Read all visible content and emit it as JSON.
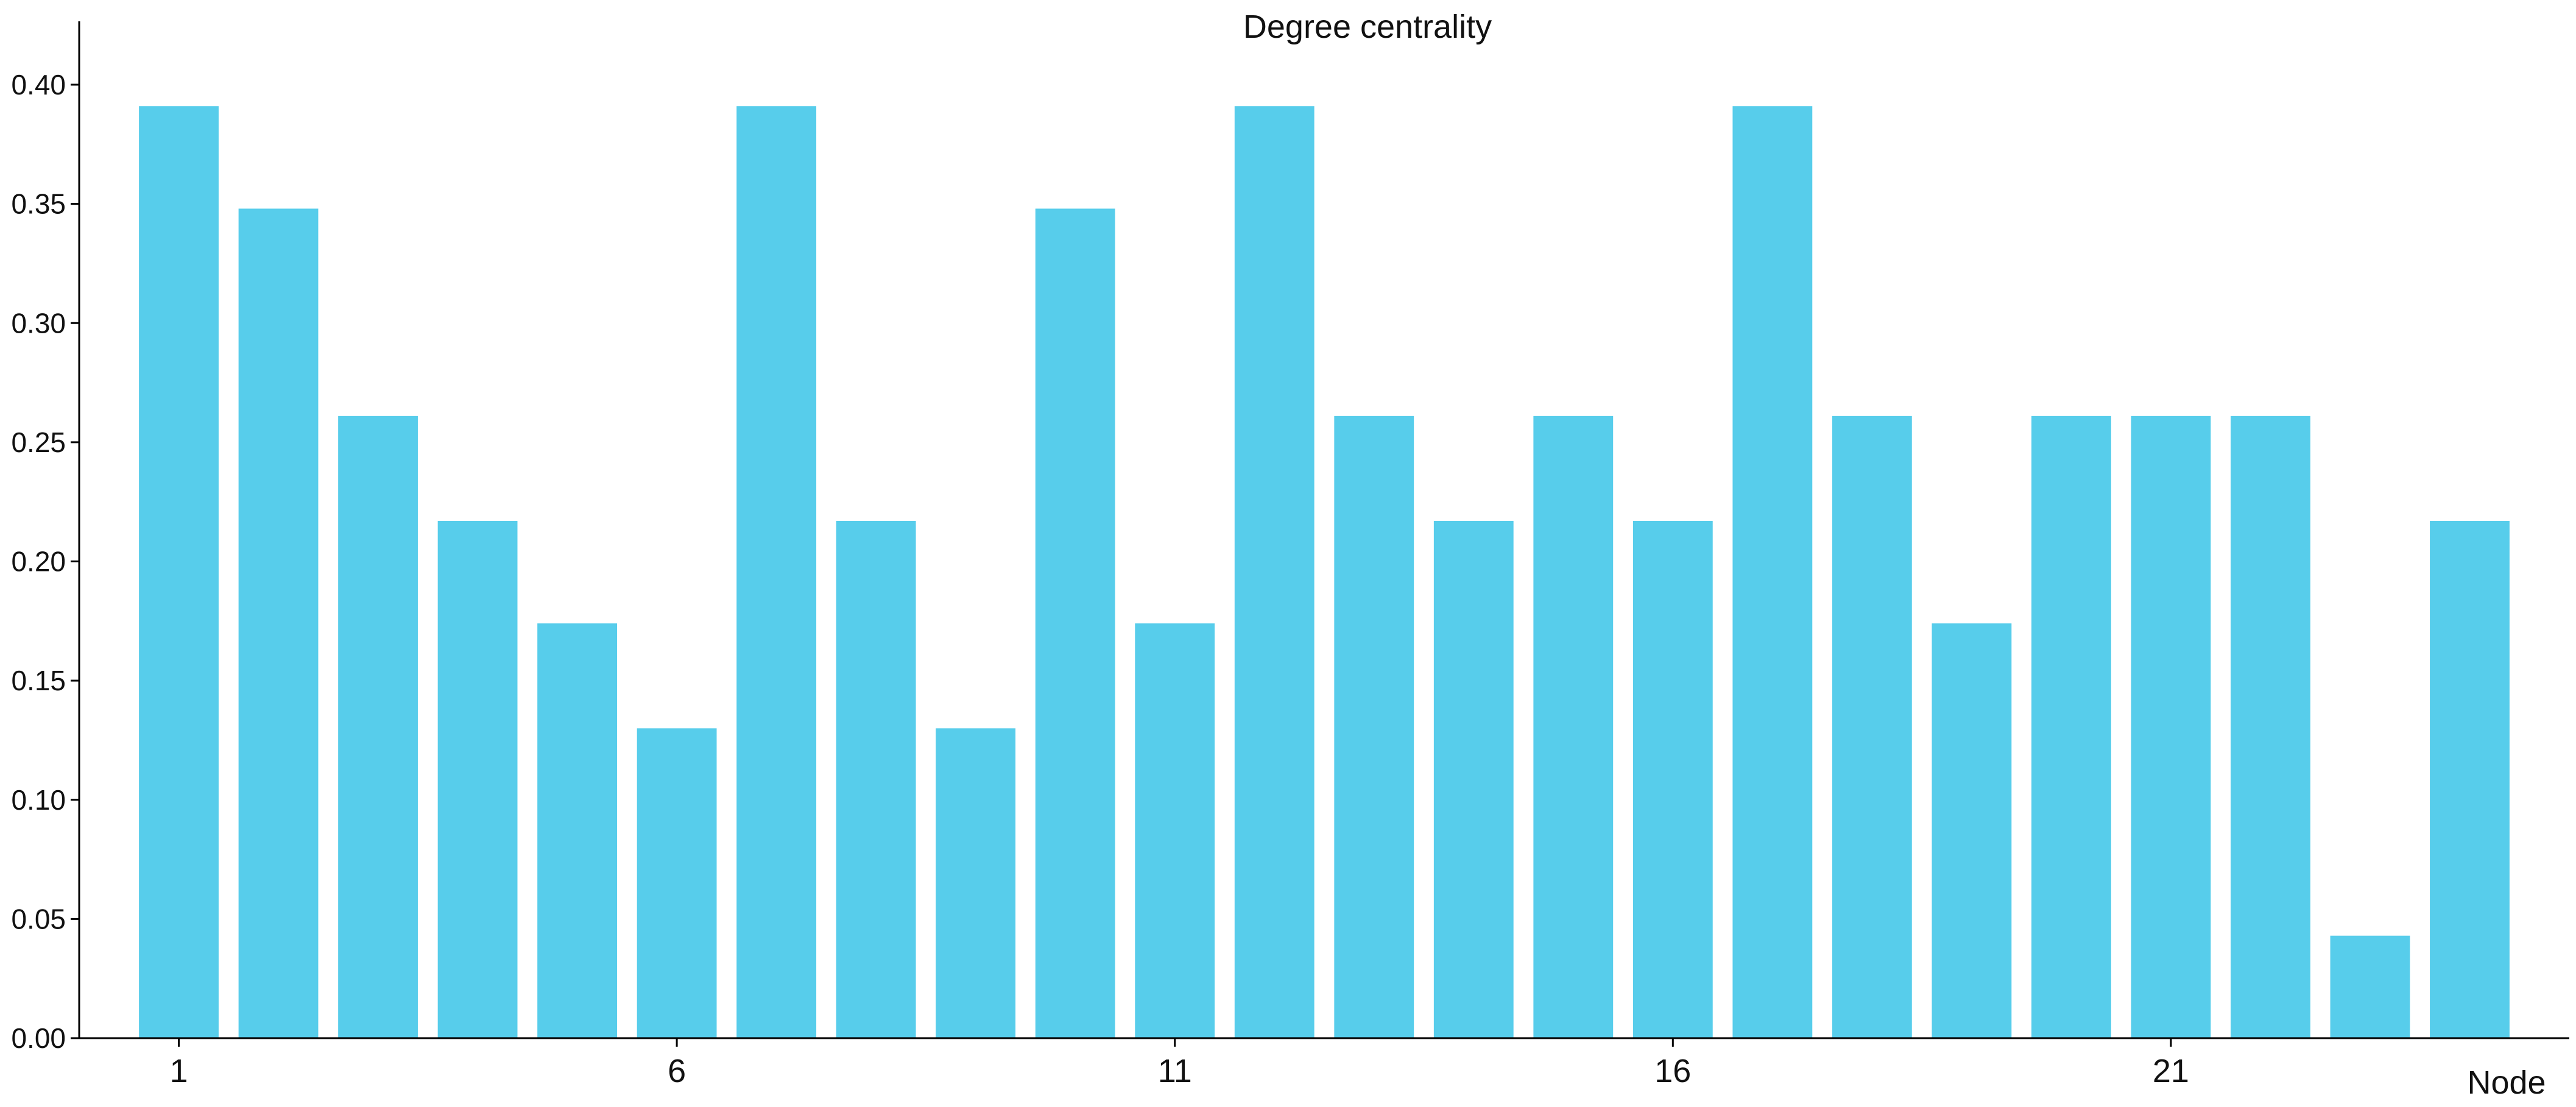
{
  "chart_data": {
    "type": "bar",
    "title": "Degree centrality",
    "xlabel": "Node",
    "ylabel": "",
    "categories": [
      1,
      2,
      3,
      4,
      5,
      6,
      7,
      8,
      9,
      10,
      11,
      12,
      13,
      14,
      15,
      16,
      17,
      18,
      19,
      20,
      21,
      22,
      23,
      24
    ],
    "values": [
      0.391,
      0.348,
      0.261,
      0.217,
      0.174,
      0.13,
      0.391,
      0.217,
      0.13,
      0.348,
      0.174,
      0.391,
      0.261,
      0.217,
      0.261,
      0.217,
      0.391,
      0.261,
      0.174,
      0.261,
      0.261,
      0.261,
      0.043,
      0.217
    ],
    "ylim": [
      0,
      0.4
    ],
    "xlim": [
      0,
      25
    ],
    "x_ticks": [
      1,
      6,
      11,
      16,
      21
    ],
    "y_ticks": [
      "0.00",
      "0.05",
      "0.10",
      "0.15",
      "0.20",
      "0.25",
      "0.30",
      "0.35",
      "0.40"
    ],
    "bar_color": "#57CDEB",
    "grid": false,
    "legend": "none"
  }
}
